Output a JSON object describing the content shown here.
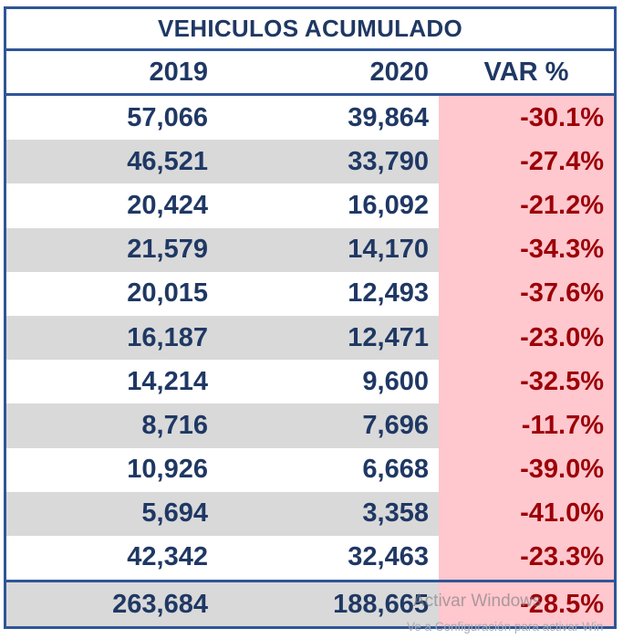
{
  "title": "VEHICULOS ACUMULADO",
  "header": {
    "col_2019": "2019",
    "col_2020": "2020",
    "col_var": "VAR %"
  },
  "rows": [
    {
      "v2019": "57,066",
      "v2020": "39,864",
      "var": "-30.1%"
    },
    {
      "v2019": "46,521",
      "v2020": "33,790",
      "var": "-27.4%"
    },
    {
      "v2019": "20,424",
      "v2020": "16,092",
      "var": "-21.2%"
    },
    {
      "v2019": "21,579",
      "v2020": "14,170",
      "var": "-34.3%"
    },
    {
      "v2019": "20,015",
      "v2020": "12,493",
      "var": "-37.6%"
    },
    {
      "v2019": "16,187",
      "v2020": "12,471",
      "var": "-23.0%"
    },
    {
      "v2019": "14,214",
      "v2020": "9,600",
      "var": "-32.5%"
    },
    {
      "v2019": "8,716",
      "v2020": "7,696",
      "var": "-11.7%"
    },
    {
      "v2019": "10,926",
      "v2020": "6,668",
      "var": "-39.0%"
    },
    {
      "v2019": "5,694",
      "v2020": "3,358",
      "var": "-41.0%"
    },
    {
      "v2019": "42,342",
      "v2020": "32,463",
      "var": "-23.3%"
    }
  ],
  "total": {
    "v2019": "263,684",
    "v2020": "188,665",
    "var": "-28.5%"
  },
  "watermark": {
    "line1": "Activar Windows",
    "line2": "Ve a Configuración para activar Win"
  },
  "colors": {
    "navy_text": "#1F3864",
    "border_blue": "#2F5597",
    "stripe_gray": "#D9D9D9",
    "var_pink": "#FFC7CE",
    "var_red": "#9C0006",
    "watermark_gray": "#7A7D80"
  },
  "chart_data": {
    "type": "table",
    "title": "VEHICULOS ACUMULADO",
    "columns": [
      "2019",
      "2020",
      "VAR %"
    ],
    "rows": [
      [
        57066,
        39864,
        -30.1
      ],
      [
        46521,
        33790,
        -27.4
      ],
      [
        20424,
        16092,
        -21.2
      ],
      [
        21579,
        14170,
        -34.3
      ],
      [
        20015,
        12493,
        -37.6
      ],
      [
        16187,
        12471,
        -23.0
      ],
      [
        14214,
        9600,
        -32.5
      ],
      [
        8716,
        7696,
        -11.7
      ],
      [
        10926,
        6668,
        -39.0
      ],
      [
        5694,
        3358,
        -41.0
      ],
      [
        42342,
        32463,
        -23.3
      ]
    ],
    "total": [
      263684,
      188665,
      -28.5
    ],
    "layout_hints": {
      "striped_rows": true,
      "var_column_highlight": "pink",
      "negative_values_color": "dark_red"
    }
  }
}
